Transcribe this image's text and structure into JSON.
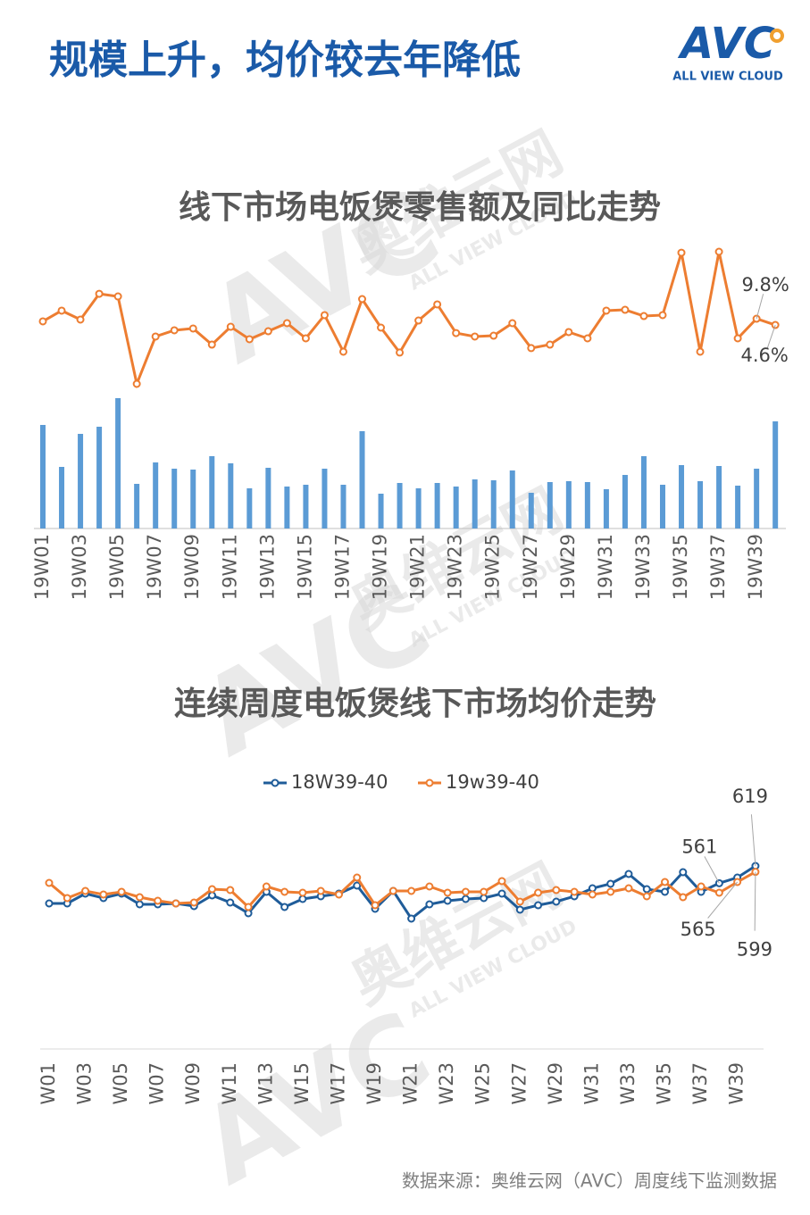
{
  "header": {
    "title": "规模上升，均价较去年降低",
    "logo": "AVC",
    "logo_sub": "ALL VIEW CLOUD"
  },
  "watermark": {
    "brand": "AVC",
    "name": "奥维云网",
    "sub": "ALL VIEW CLOUD"
  },
  "footer": {
    "source": "数据来源：奥维云网（AVC）周度线下监测数据"
  },
  "chart_data": [
    {
      "type": "bar",
      "title": "线下市场电饭煲零售额及同比走势",
      "categories": [
        "19W01",
        null,
        "19W03",
        null,
        "19W05",
        null,
        "19W07",
        null,
        "19W09",
        null,
        "19W11",
        null,
        "19W13",
        null,
        "19W15",
        null,
        "19W17",
        null,
        "19W19",
        null,
        "19W21",
        null,
        "19W23",
        null,
        "19W25",
        null,
        "19W27",
        null,
        "19W29",
        null,
        "19W31",
        null,
        "19W33",
        null,
        "19W35",
        null,
        "19W37",
        null,
        "19W39",
        null
      ],
      "series": [
        {
          "type": "bar",
          "color": "#5b9bd5",
          "values": [
            116,
            69,
            106,
            114,
            146,
            50,
            74,
            67,
            66,
            81,
            73,
            45,
            68,
            47,
            49,
            67,
            49,
            109,
            39,
            51,
            45,
            51,
            47,
            55,
            54,
            65,
            40,
            52,
            53,
            52,
            44,
            60,
            81,
            49,
            71,
            53,
            70,
            48,
            67,
            120
          ]
        },
        {
          "type": "line",
          "color": "#ed7d31",
          "values": [
            7.6,
            16.5,
            9.1,
            30.5,
            28.3,
            -44.3,
            -5.0,
            0.2,
            1.7,
            -11.7,
            3.1,
            -7.2,
            -0.6,
            6.1,
            -6.5,
            12.8,
            -17.6,
            26.1,
            2.4,
            -18.3,
            8.3,
            21.7,
            -2.1,
            -5.0,
            -4.3,
            6.1,
            -14.6,
            -11.7,
            -1.3,
            -6.5,
            16.5,
            17.2,
            12.0,
            12.8,
            64.6,
            -17.6,
            65.4,
            -6.5,
            9.8,
            4.6
          ],
          "value_labels": [
            null,
            null,
            null,
            null,
            null,
            null,
            null,
            null,
            null,
            null,
            null,
            null,
            null,
            null,
            null,
            null,
            null,
            null,
            null,
            null,
            null,
            null,
            null,
            null,
            null,
            null,
            null,
            null,
            null,
            null,
            null,
            null,
            null,
            null,
            null,
            null,
            null,
            null,
            "9.8%",
            "4.6%"
          ]
        }
      ]
    },
    {
      "type": "line",
      "title": "连续周度电饭煲线下市场均价走势",
      "categories": [
        "W01",
        null,
        "W03",
        null,
        "W05",
        null,
        "W07",
        null,
        "W09",
        null,
        "W11",
        null,
        "W13",
        null,
        "W15",
        null,
        "W17",
        null,
        "W19",
        null,
        "W21",
        null,
        "W23",
        null,
        "W25",
        null,
        "W27",
        null,
        "W29",
        null,
        "W31",
        null,
        "W33",
        null,
        "W35",
        null,
        "W37",
        null,
        "W39",
        null
      ],
      "series": [
        {
          "name": "18W39-40",
          "color": "#1f5c99",
          "values": [
            493,
            493,
            526,
            511,
            526,
            490,
            490,
            493,
            484,
            520,
            496,
            460,
            532,
            481,
            508,
            517,
            526,
            553,
            475,
            535,
            442,
            490,
            502,
            508,
            511,
            526,
            472,
            487,
            499,
            517,
            544,
            559,
            592,
            541,
            532,
            598,
            532,
            561,
            580,
            619
          ],
          "value_labels": [
            null,
            null,
            null,
            null,
            null,
            null,
            null,
            null,
            null,
            null,
            null,
            null,
            null,
            null,
            null,
            null,
            null,
            null,
            null,
            null,
            null,
            null,
            null,
            null,
            null,
            null,
            null,
            null,
            null,
            null,
            null,
            null,
            null,
            null,
            null,
            null,
            null,
            "561",
            null,
            "619"
          ]
        },
        {
          "name": "19w39-40",
          "color": "#ed7d31",
          "values": [
            562,
            511,
            535,
            523,
            532,
            514,
            502,
            493,
            496,
            541,
            538,
            481,
            550,
            532,
            529,
            535,
            523,
            580,
            487,
            535,
            535,
            550,
            529,
            532,
            532,
            568,
            499,
            529,
            538,
            532,
            523,
            532,
            544,
            517,
            565,
            514,
            550,
            529,
            565,
            599
          ],
          "value_labels": [
            null,
            null,
            null,
            null,
            null,
            null,
            null,
            null,
            null,
            null,
            null,
            null,
            null,
            null,
            null,
            null,
            null,
            null,
            null,
            null,
            null,
            null,
            null,
            null,
            null,
            null,
            null,
            null,
            null,
            null,
            null,
            null,
            null,
            null,
            null,
            null,
            null,
            null,
            "565",
            "599"
          ]
        }
      ]
    }
  ]
}
